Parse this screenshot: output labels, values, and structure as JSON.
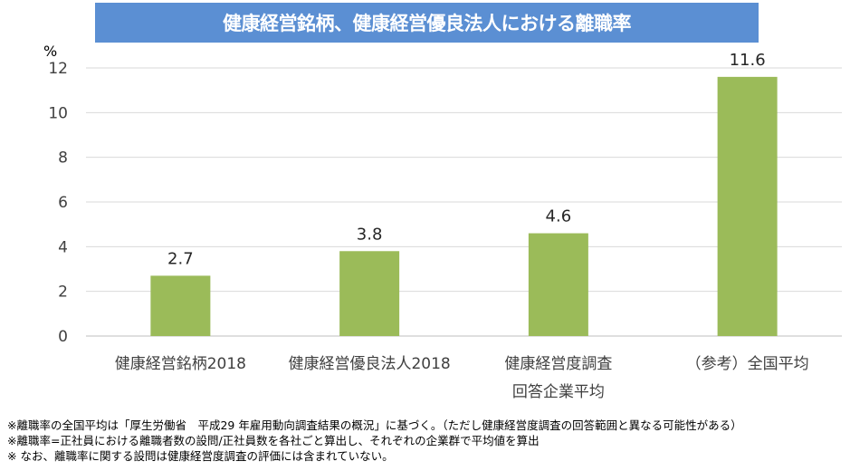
{
  "chart_data": {
    "type": "bar",
    "title": "健康経営銘柄、健康経営優良法人における離職率",
    "ylabel": "%",
    "xlabel": "",
    "ylim": [
      0,
      12
    ],
    "yticks": [
      0,
      2,
      4,
      6,
      8,
      10,
      12
    ],
    "grid": true,
    "categories": [
      [
        "健康経営銘柄2018"
      ],
      [
        "健康経営優良法人2018"
      ],
      [
        "健康経営度調査",
        "回答企業平均"
      ],
      [
        "（参考）全国平均"
      ]
    ],
    "values": [
      2.7,
      3.8,
      4.6,
      11.6
    ],
    "value_labels": [
      "2.7",
      "3.8",
      "4.6",
      "11.6"
    ],
    "bar_color": "#9BBB59",
    "title_bg": "#5B8FD3"
  },
  "notes": [
    "※離職率の全国平均は「厚生労働省　平成29 年雇用動向調査結果の概況」に基づく。（ただし健康経営度調査の回答範囲と異なる可能性がある）",
    "※離職率=正社員における離職者数の設問/正社員数を各社ごと算出し、それぞれの企業群で平均値を算出",
    "※ なお、離職率に関する設問は健康経営度調査の評価には含まれていない。"
  ]
}
